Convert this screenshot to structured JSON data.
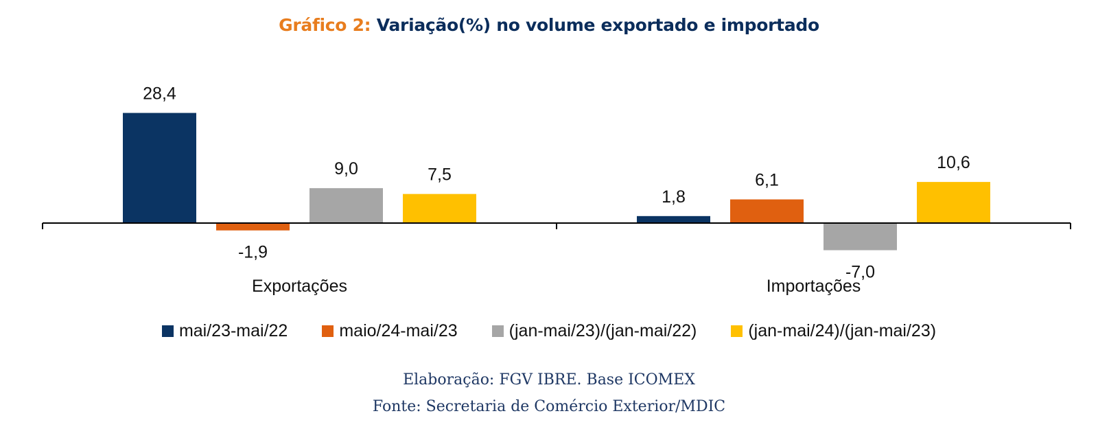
{
  "chart_data": {
    "type": "bar",
    "title_prefix": "Gráfico 2:",
    "title": "Variação(%) no volume exportado e importado",
    "categories": [
      "Exportações",
      "Importações"
    ],
    "series": [
      {
        "name": "mai/23-mai/22",
        "color": "#0B3463",
        "values": [
          28.4,
          1.8
        ],
        "labels": [
          "28,4",
          "1,8"
        ]
      },
      {
        "name": "maio/24-mai/23",
        "color": "#E06010",
        "values": [
          -1.9,
          6.1
        ],
        "labels": [
          "-1,9",
          "6,1"
        ]
      },
      {
        "name": "(jan-mai/23)/(jan-mai/22)",
        "color": "#A6A6A6",
        "values": [
          9.0,
          -7.0
        ],
        "labels": [
          "9,0",
          "-7,0"
        ]
      },
      {
        "name": "(jan-mai/24)/(jan-mai/23)",
        "color": "#FFC000",
        "values": [
          7.5,
          10.6
        ],
        "labels": [
          "7,5",
          "10,6"
        ]
      }
    ],
    "legend_position": "bottom",
    "grid": false
  },
  "footer": {
    "elaboration": "Elaboração: FGV IBRE. Base ICOMEX",
    "source": "Fonte: Secretaria de Comércio Exterior/MDIC"
  }
}
